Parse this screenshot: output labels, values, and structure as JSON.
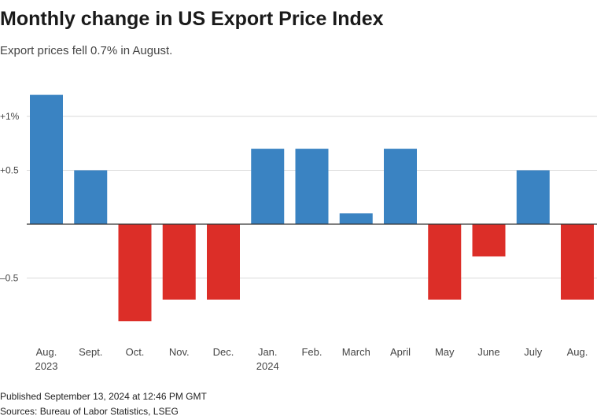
{
  "header": {
    "title": "Monthly change in US Export Price Index",
    "subtitle": "Export prices fell 0.7% in August."
  },
  "footer": {
    "published": "Published September 13, 2024 at 12:46 PM GMT",
    "sources": "Sources: Bureau of Labor Statistics, LSEG"
  },
  "colors": {
    "positive": "#3a83c2",
    "negative": "#dc2e28",
    "grid": "#d9d9d9",
    "zero_line": "#333333",
    "tick_text": "#444444"
  },
  "chart_data": {
    "type": "bar",
    "title": "Monthly change in US Export Price Index",
    "subtitle": "Export prices fell 0.7% in August.",
    "xlabel": "",
    "ylabel": "",
    "ylim": [
      -1.0,
      1.25
    ],
    "grid": true,
    "yticks": [
      {
        "value": 1.0,
        "label": "+1%"
      },
      {
        "value": 0.5,
        "label": "+0.5"
      },
      {
        "value": -0.5,
        "label": "–0.5"
      }
    ],
    "categories": [
      {
        "label": "Aug.",
        "sublabel": "2023"
      },
      {
        "label": "Sept.",
        "sublabel": ""
      },
      {
        "label": "Oct.",
        "sublabel": ""
      },
      {
        "label": "Nov.",
        "sublabel": ""
      },
      {
        "label": "Dec.",
        "sublabel": ""
      },
      {
        "label": "Jan.",
        "sublabel": "2024"
      },
      {
        "label": "Feb.",
        "sublabel": ""
      },
      {
        "label": "March",
        "sublabel": ""
      },
      {
        "label": "April",
        "sublabel": ""
      },
      {
        "label": "May",
        "sublabel": ""
      },
      {
        "label": "June",
        "sublabel": ""
      },
      {
        "label": "July",
        "sublabel": ""
      },
      {
        "label": "Aug.",
        "sublabel": ""
      }
    ],
    "values": [
      1.2,
      0.5,
      -0.9,
      -0.7,
      -0.7,
      0.7,
      0.7,
      0.1,
      0.7,
      -0.7,
      -0.3,
      0.5,
      -0.7
    ]
  }
}
